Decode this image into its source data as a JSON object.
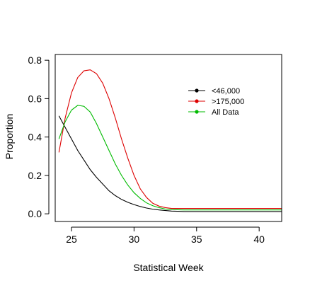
{
  "chart_data": {
    "type": "line",
    "title": "",
    "xlabel": "Statistical Week",
    "ylabel": "Proportion",
    "xlim": [
      23.7,
      41.8
    ],
    "ylim": [
      -0.04,
      0.83
    ],
    "x_ticks": [
      25,
      30,
      35,
      40
    ],
    "y_ticks": [
      0.0,
      0.2,
      0.4,
      0.6,
      0.8
    ],
    "x_tick_labels": [
      "25",
      "30",
      "35",
      "40"
    ],
    "y_tick_labels": [
      "0.0",
      "0.2",
      "0.4",
      "0.6",
      "0.8"
    ],
    "grid": false,
    "legend_position": "upper-right",
    "series": [
      {
        "name": "<46,000",
        "color": "#000000",
        "x": [
          24,
          24.5,
          25,
          25.5,
          26,
          26.5,
          27,
          27.5,
          28,
          28.5,
          29,
          29.5,
          30,
          30.5,
          31,
          31.5,
          32,
          33,
          34,
          36,
          38,
          40,
          41.8
        ],
        "y": [
          0.51,
          0.45,
          0.39,
          0.33,
          0.28,
          0.23,
          0.19,
          0.155,
          0.12,
          0.095,
          0.075,
          0.06,
          0.048,
          0.038,
          0.03,
          0.024,
          0.02,
          0.014,
          0.012,
          0.012,
          0.012,
          0.012,
          0.012
        ]
      },
      {
        "name": ">175,000",
        "color": "#dd0000",
        "x": [
          24,
          24.5,
          25,
          25.5,
          26,
          26.5,
          27,
          27.5,
          28,
          28.5,
          29,
          29.5,
          30,
          30.5,
          31,
          31.5,
          32,
          32.5,
          33,
          34,
          36,
          38,
          40,
          41.8
        ],
        "y": [
          0.32,
          0.5,
          0.63,
          0.71,
          0.745,
          0.75,
          0.73,
          0.68,
          0.6,
          0.5,
          0.39,
          0.29,
          0.2,
          0.13,
          0.085,
          0.055,
          0.04,
          0.032,
          0.028,
          0.028,
          0.028,
          0.028,
          0.028,
          0.028
        ]
      },
      {
        "name": "All Data",
        "color": "#00bb00",
        "x": [
          24,
          24.5,
          25,
          25.5,
          26,
          26.5,
          27,
          27.5,
          28,
          28.5,
          29,
          29.5,
          30,
          30.5,
          31,
          31.5,
          32,
          32.5,
          33,
          34,
          36,
          38,
          40,
          41.8
        ],
        "y": [
          0.39,
          0.48,
          0.54,
          0.565,
          0.56,
          0.53,
          0.47,
          0.4,
          0.33,
          0.26,
          0.2,
          0.15,
          0.11,
          0.08,
          0.057,
          0.042,
          0.032,
          0.025,
          0.022,
          0.02,
          0.02,
          0.02,
          0.02,
          0.02
        ]
      }
    ]
  }
}
